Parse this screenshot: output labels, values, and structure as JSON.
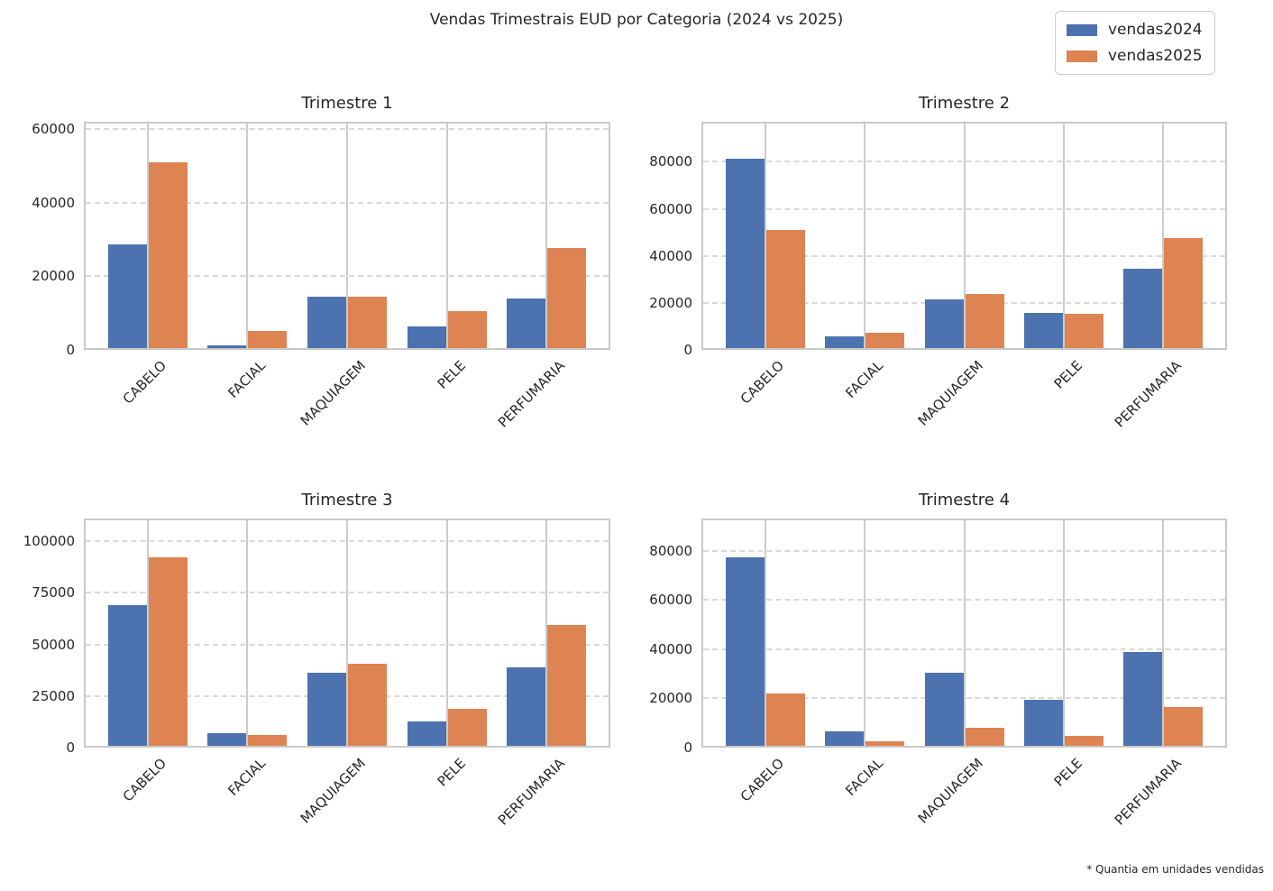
{
  "title": "Vendas Trimestrais EUD por Categoria (2024 vs 2025)",
  "footnote": "* Quantia em unidades vendidas",
  "legend": {
    "items": [
      {
        "label": "vendas2024",
        "color": "#4C72B0"
      },
      {
        "label": "vendas2025",
        "color": "#DD8452"
      }
    ]
  },
  "chart_data": {
    "type": "bar",
    "categories": [
      "CABELO",
      "FACIAL",
      "MAQUIAGEM",
      "PELE",
      "PERFUMARIA"
    ],
    "series_names": [
      "vendas2024",
      "vendas2025"
    ],
    "series_colors": {
      "vendas2024": "#4C72B0",
      "vendas2025": "#DD8452"
    },
    "legend_position": "upper right of figure",
    "grid": {
      "horizontal": "dashed gray",
      "vertical": "solid gray"
    },
    "subplots": [
      {
        "title": "Trimestre 1",
        "yticks": [
          0,
          20000,
          40000,
          60000
        ],
        "ylim": [
          0,
          62000
        ],
        "series": [
          {
            "name": "vendas2024",
            "values": [
              28500,
              800,
              14000,
              6000,
              13600
            ]
          },
          {
            "name": "vendas2025",
            "values": [
              51000,
              4800,
              14000,
              10200,
              27300
            ]
          }
        ]
      },
      {
        "title": "Trimestre 2",
        "yticks": [
          0,
          20000,
          40000,
          60000,
          80000
        ],
        "ylim": [
          0,
          97000
        ],
        "series": [
          {
            "name": "vendas2024",
            "values": [
              81000,
              5000,
              20700,
              15000,
              34000
            ]
          },
          {
            "name": "vendas2025",
            "values": [
              50500,
              6500,
              23300,
              14600,
              47000
            ]
          }
        ]
      },
      {
        "title": "Trimestre 3",
        "yticks": [
          0,
          25000,
          50000,
          75000,
          100000
        ],
        "ylim": [
          0,
          111000
        ],
        "series": [
          {
            "name": "vendas2024",
            "values": [
              68500,
              6000,
              35500,
              12000,
              38500
            ]
          },
          {
            "name": "vendas2025",
            "values": [
              92000,
              5500,
              40000,
              18000,
              59000
            ]
          }
        ]
      },
      {
        "title": "Trimestre 4",
        "yticks": [
          0,
          20000,
          40000,
          60000,
          80000
        ],
        "ylim": [
          0,
          93000
        ],
        "series": [
          {
            "name": "vendas2024",
            "values": [
              77000,
              6000,
              30000,
              18700,
              38500
            ]
          },
          {
            "name": "vendas2025",
            "values": [
              21500,
              2000,
              7500,
              4000,
              15800
            ]
          }
        ]
      }
    ]
  }
}
